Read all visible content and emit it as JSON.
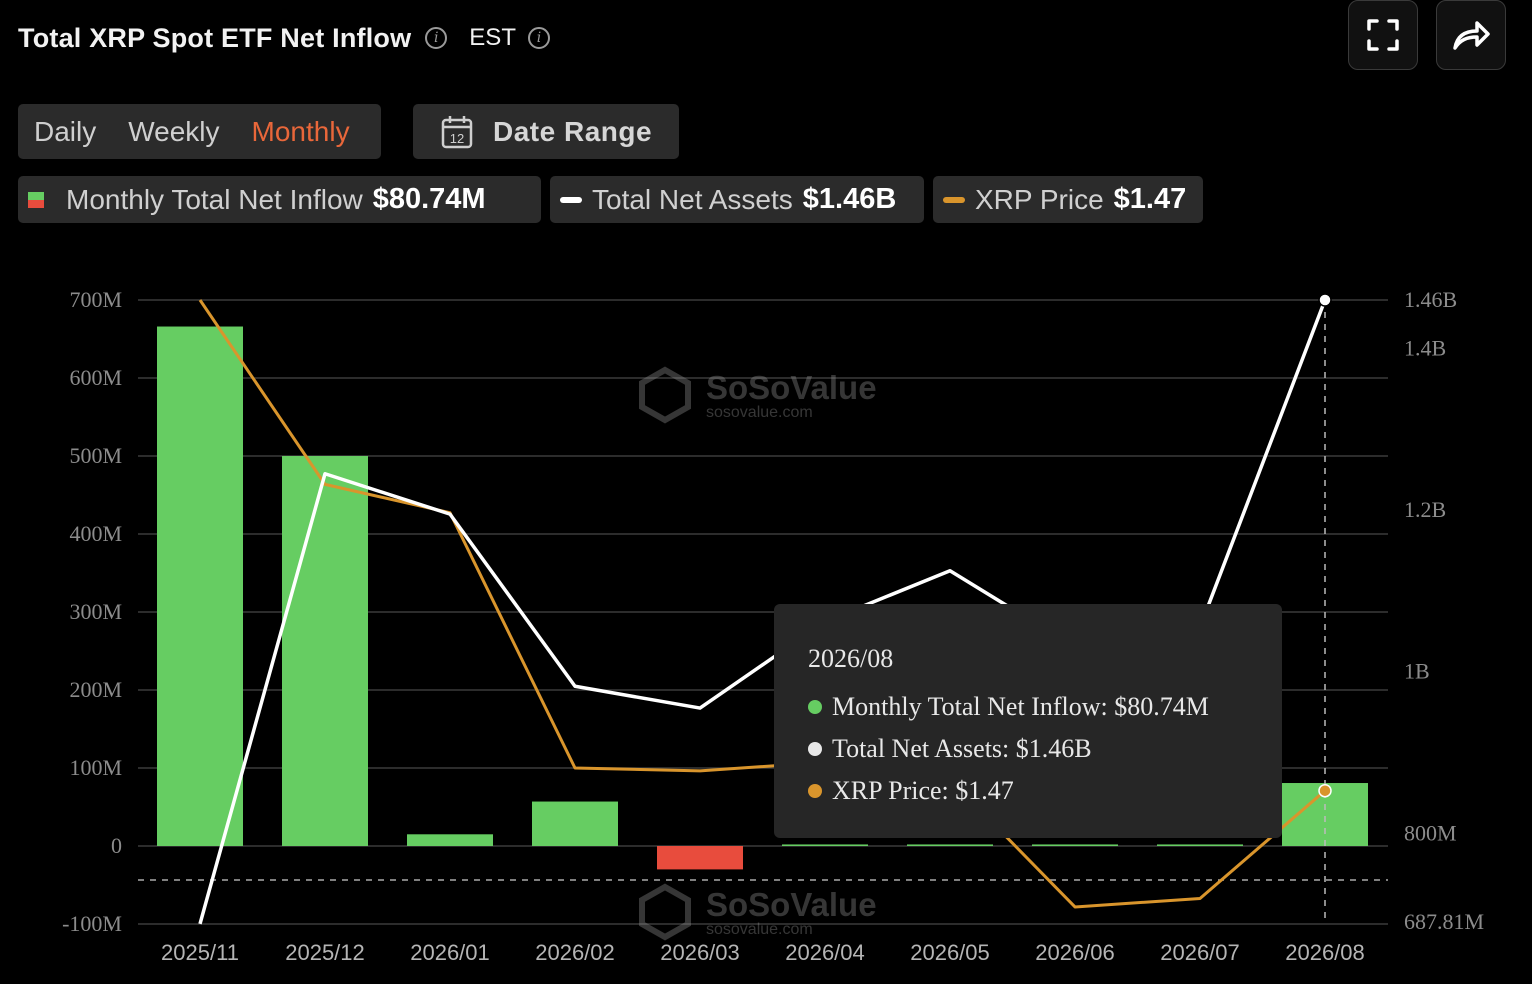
{
  "header": {
    "title": "Total XRP Spot ETF Net Inflow",
    "timezone": "EST",
    "icons": [
      "info-icon",
      "info-icon",
      "fullscreen-icon",
      "share-icon"
    ]
  },
  "controls": {
    "periods": [
      "Daily",
      "Weekly",
      "Monthly"
    ],
    "active_period": "Monthly",
    "date_range_label": "Date Range",
    "date_icon_day": "12"
  },
  "legend": {
    "inflow_label": "Monthly Total Net Inflow",
    "inflow_value": "$80.74M",
    "assets_label": "Total Net Assets",
    "assets_value": "$1.46B",
    "price_label": "XRP Price",
    "price_value": "$1.47"
  },
  "colors": {
    "positive": "#66cd62",
    "negative": "#e84c3d",
    "assets_line": "#ffffff",
    "price_line": "#d9952c",
    "active_tab": "#e9673a"
  },
  "watermark": {
    "brand": "SoSoValue",
    "url": "sosovalue.com"
  },
  "tooltip": {
    "date": "2026/08",
    "rows": [
      {
        "label": "Monthly Total Net Inflow: $80.74M",
        "color": "#66cd62"
      },
      {
        "label": "Total Net Assets: $1.46B",
        "color": "#e8e8e8"
      },
      {
        "label": "XRP Price: $1.47",
        "color": "#d9952c"
      }
    ]
  },
  "chart_data": {
    "type": "bar",
    "categories": [
      "2025/11",
      "2025/12",
      "2026/01",
      "2026/02",
      "2026/03",
      "2026/04",
      "2026/05",
      "2026/06",
      "2026/07",
      "2026/08"
    ],
    "series": [
      {
        "name": "Monthly Total Net Inflow",
        "type": "bar",
        "axis": "left",
        "values": [
          666,
          500,
          15,
          57,
          -30,
          2,
          2,
          2,
          2,
          80.74
        ]
      },
      {
        "name": "Total Net Assets",
        "type": "line",
        "axis": "right",
        "values": [
          688,
          1245,
          1195,
          982,
          955,
          1062,
          1125,
          1030,
          1055,
          1460
        ]
      },
      {
        "name": "XRP Price",
        "type": "line",
        "axis": "hidden",
        "values": [
          3.2,
          2.55,
          2.45,
          1.55,
          1.54,
          1.57,
          1.51,
          1.06,
          1.09,
          1.47
        ]
      }
    ],
    "left_axis": {
      "ticks": [
        "700M",
        "600M",
        "500M",
        "400M",
        "300M",
        "200M",
        "100M",
        "0",
        "-100M"
      ],
      "min": -100,
      "max": 700,
      "unit": "M"
    },
    "right_axis": {
      "ticks": [
        "1.46B",
        "1.4B",
        "1.2B",
        "1B",
        "800M",
        "687.81M"
      ],
      "tick_values": [
        1460,
        1400,
        1200,
        1000,
        800,
        687.81
      ],
      "min": 687.81,
      "max": 1460,
      "unit": "M"
    },
    "price_range": [
      1.0,
      3.2
    ],
    "grid": true,
    "legend": "top"
  }
}
